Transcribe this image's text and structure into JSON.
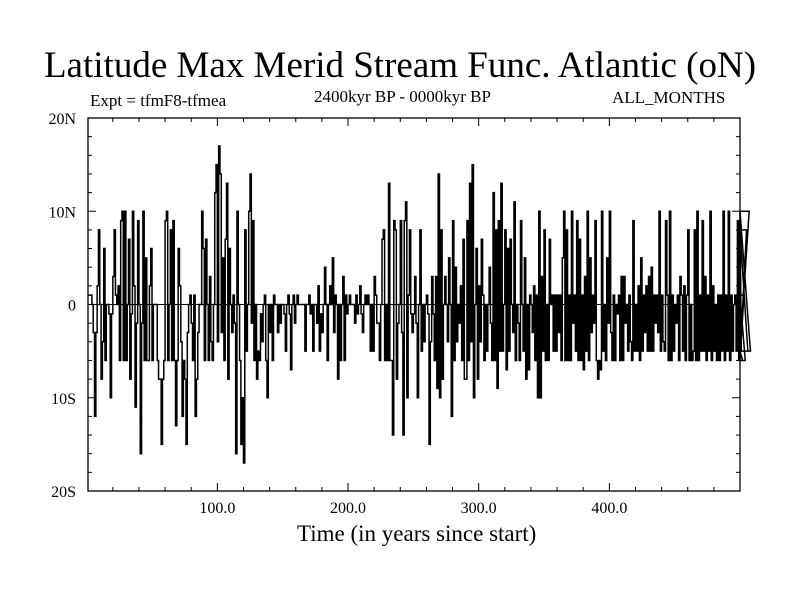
{
  "chart_data": {
    "type": "line",
    "title": "Latitude Max Merid Stream Func. Atlantic (oN)",
    "subtitle_left": "Expt = tfmF8-tfmea",
    "subtitle_center": "2400kyr BP - 0000kyr BP",
    "subtitle_right": "ALL_MONTHS",
    "xlabel": "Time (in years since start)",
    "ylabel": "",
    "xlim": [
      1,
      500
    ],
    "ylim": [
      -20,
      20
    ],
    "x_ticks": [
      100,
      200,
      300,
      400
    ],
    "x_tick_labels": [
      "100.0",
      "200.0",
      "300.0",
      "400.0"
    ],
    "y_ticks": [
      20,
      10,
      0,
      -10,
      -20
    ],
    "y_tick_labels": [
      "20N",
      "10N",
      "0",
      "10S",
      "20S"
    ],
    "series": [
      {
        "name": "latitude",
        "x_start": 1,
        "x_step": 1,
        "values": [
          1,
          1,
          1,
          0,
          -3,
          -12,
          -3,
          2,
          8,
          0,
          -8,
          -4,
          6,
          -6,
          0,
          0,
          -1,
          -10,
          -1,
          3,
          8,
          1,
          0,
          2,
          -6,
          9,
          10,
          -6,
          10,
          -6,
          0,
          7,
          -8,
          -1,
          10,
          2,
          -11,
          -2,
          9,
          0,
          -16,
          -2,
          10,
          -6,
          5,
          -6,
          -6,
          2,
          6,
          -6,
          0,
          0,
          0,
          -6,
          -8,
          -8,
          -15,
          -8,
          -6,
          9,
          10,
          -6,
          0,
          8,
          -6,
          9,
          -6,
          -13,
          -6,
          6,
          2,
          -4,
          -12,
          -6,
          -8,
          -15,
          -3,
          0,
          1,
          -2,
          -6,
          1,
          -12,
          -8,
          -3,
          0,
          0,
          10,
          6,
          -6,
          7,
          0,
          -6,
          3,
          -4,
          -6,
          0,
          12,
          15,
          -4,
          17,
          14,
          -3,
          5,
          -6,
          7,
          13,
          -8,
          6,
          0,
          -3,
          1,
          -2,
          -16,
          10,
          0,
          -6,
          -15,
          -10,
          -17,
          8,
          -5,
          0,
          10,
          14,
          -2,
          9,
          -6,
          0,
          -8,
          -5,
          -6,
          -1,
          -4,
          0,
          1,
          -6,
          -10,
          0,
          -3,
          0,
          -6,
          1,
          0,
          0,
          -3,
          0,
          -2,
          0,
          0,
          -1,
          -5,
          0,
          1,
          -1,
          -7,
          0,
          1,
          -2,
          0,
          1,
          0,
          0,
          0,
          0,
          0,
          -5,
          0,
          0,
          1,
          -1,
          0,
          -5,
          0,
          0,
          -2,
          2,
          -5,
          -1,
          -3,
          0,
          4,
          0,
          -6,
          0,
          2,
          0,
          5,
          -3,
          1,
          0,
          -8,
          0,
          -6,
          0,
          3,
          -6,
          1,
          -1,
          0,
          1,
          0,
          0,
          0,
          -2,
          1,
          -1,
          0,
          2,
          -1,
          -3,
          0,
          1,
          0,
          1,
          0,
          -5,
          0,
          -5,
          3,
          1,
          -2,
          -2,
          -6,
          0,
          7,
          8,
          -6,
          0,
          -6,
          13,
          -6,
          -6,
          -14,
          9,
          8,
          -8,
          -2,
          0,
          9,
          -3,
          -14,
          9,
          11,
          -10,
          1,
          8,
          -1,
          -3,
          -1,
          3,
          -2,
          -10,
          0,
          8,
          -5,
          0,
          -4,
          0,
          1,
          -1,
          -15,
          -4,
          3,
          -1,
          -6,
          3,
          -9,
          14,
          -10,
          8,
          -8,
          0,
          3,
          0,
          -4,
          5,
          0,
          -12,
          9,
          -6,
          4,
          -4,
          0,
          -2,
          2,
          -6,
          7,
          -8,
          -8,
          9,
          -6,
          13,
          -4,
          15,
          -10,
          0,
          6,
          -8,
          2,
          -4,
          7,
          1,
          -6,
          0,
          -5,
          0,
          4,
          -2,
          -6,
          12,
          -6,
          8,
          -9,
          9,
          -5,
          13,
          -5,
          0,
          8,
          -7,
          6,
          -5,
          7,
          0,
          -3,
          11,
          -6,
          0,
          -2,
          -6,
          9,
          0,
          -5,
          5,
          -8,
          0,
          -7,
          1,
          0,
          -3,
          2,
          -6,
          1,
          -10,
          10,
          -10,
          3,
          -5,
          8,
          -6,
          0,
          -6,
          7,
          0,
          1,
          -5,
          1,
          -5,
          1,
          -3,
          1,
          -6,
          5,
          10,
          -6,
          8,
          -6,
          1,
          -6,
          10,
          -2,
          1,
          -5,
          9,
          -6,
          7,
          -6,
          1,
          -7,
          3,
          -5,
          10,
          -6,
          5,
          -3,
          1,
          -2,
          9,
          -6,
          -8,
          -6,
          -7,
          10,
          -5,
          0,
          -6,
          5,
          -2,
          10,
          -3,
          -6,
          1,
          -6,
          0,
          -1,
          1,
          -6,
          3,
          -6,
          3,
          -2,
          0,
          -5,
          1,
          -4,
          -6,
          9,
          -5,
          0,
          -5,
          2,
          -6,
          5,
          -5,
          1,
          -3,
          2,
          -5,
          3,
          -5,
          4,
          -5,
          1,
          -2,
          1,
          -3,
          10,
          -5,
          1,
          -4,
          -5,
          9,
          1,
          -6,
          10,
          -6,
          1,
          -5,
          0,
          -2,
          1,
          -6,
          3,
          1,
          -5,
          2,
          -6,
          1,
          8,
          -6,
          0,
          -6,
          -5,
          8,
          -6,
          10,
          -6,
          1,
          -5,
          9,
          -5,
          3,
          -6,
          1,
          -5,
          10,
          -6,
          2,
          -5,
          0,
          -6,
          1,
          -6,
          1,
          -5,
          10,
          -6,
          1,
          -5,
          10,
          -6,
          1,
          -5,
          0,
          1,
          -5,
          9,
          -6,
          10,
          -5,
          -6,
          1,
          -6,
          8,
          -5,
          10,
          -5
        ]
      }
    ]
  }
}
